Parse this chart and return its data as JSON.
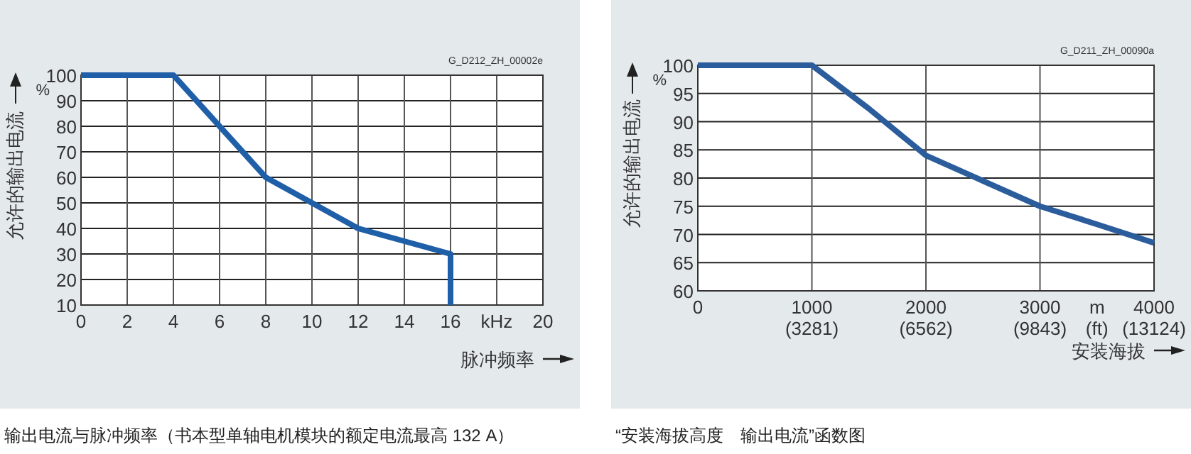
{
  "chart_data": [
    {
      "type": "line",
      "xlabel": "脉冲频率",
      "ylabel": "允许的输出电流",
      "x": [
        0,
        4,
        8,
        10,
        12,
        14,
        16,
        16
      ],
      "series": [
        {
          "color": "#1f5fa8",
          "values": [
            100,
            100,
            60,
            50,
            40,
            35,
            30,
            10
          ]
        }
      ],
      "xlim": [
        0,
        20
      ],
      "ylim": [
        10,
        100
      ],
      "xticks": [
        0,
        2,
        4,
        6,
        8,
        10,
        12,
        14,
        16,
        {
          "value": 18,
          "label": null
        },
        20
      ],
      "yticks": [
        10,
        20,
        30,
        40,
        50,
        60,
        70,
        80,
        90,
        100
      ],
      "grid": true,
      "marker": "none",
      "line_style": "solid",
      "annotations": [
        "G_D212_ZH_00002e",
        "kHz",
        "%",
        "输出电流与脉冲频率（书本型单轴电机模块的额定电流最高 132 A）"
      ]
    },
    {
      "type": "line",
      "xlabel": "安装海拔",
      "ylabel": "允许的输出电流",
      "x": [
        0,
        1000,
        1500,
        2000,
        2500,
        3000,
        3500,
        4000
      ],
      "series": [
        {
          "color": "#2b5c9c",
          "values": [
            100,
            100,
            92.3,
            84,
            79.5,
            75,
            71.8,
            68.5
          ]
        }
      ],
      "xlim": [
        0,
        4000
      ],
      "ylim": [
        60,
        100
      ],
      "xticks": [
        0,
        1000,
        2000,
        3000,
        4000
      ],
      "yticks": [
        60,
        65,
        70,
        75,
        80,
        85,
        90,
        95,
        100
      ],
      "grid": true,
      "marker": "none",
      "line_style": "solid",
      "annotations": [
        "G_D211_ZH_00090a",
        "m",
        "%",
        "“安装海拔高度　输出电流”函数图",
        "(ft)",
        "(3281)",
        "(6562)",
        "(9843)",
        "(13124)"
      ]
    }
  ]
}
